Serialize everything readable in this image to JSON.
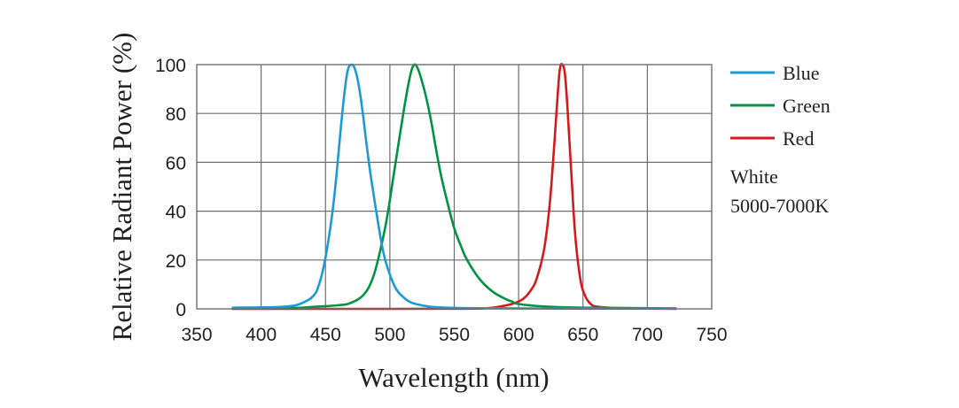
{
  "chart_data": {
    "type": "line",
    "title": "",
    "xlabel": "Wavelength (nm)",
    "ylabel": "Relative Radiant Power (%)",
    "xlim": [
      350,
      750
    ],
    "ylim": [
      0,
      100
    ],
    "xticks": [
      350,
      400,
      450,
      500,
      550,
      600,
      650,
      700,
      750
    ],
    "yticks": [
      0,
      20,
      40,
      60,
      80,
      100
    ],
    "grid": true,
    "legend_position": "right",
    "series": [
      {
        "name": "Blue",
        "color": "#1b9ad6",
        "x": [
          378,
          400,
          420,
          430,
          440,
          445,
          450,
          455,
          458,
          461,
          464,
          467,
          470,
          473,
          476,
          479,
          482,
          485,
          490,
          495,
          500,
          505,
          510,
          515,
          520,
          530,
          540,
          560,
          600,
          650,
          722
        ],
        "y": [
          0.5,
          0.6,
          1,
          2,
          5,
          10,
          21,
          38,
          52,
          69,
          85,
          97,
          100,
          98,
          91,
          80,
          67,
          55,
          38,
          23,
          14,
          8,
          5,
          3,
          2,
          1,
          0.6,
          0.3,
          0.2,
          0.1,
          0.1
        ]
      },
      {
        "name": "Green",
        "color": "#009245",
        "x": [
          378,
          420,
          440,
          460,
          470,
          480,
          487,
          493,
          498,
          503,
          508,
          512,
          516,
          519,
          522,
          525,
          528,
          532,
          536,
          540,
          545,
          550,
          555,
          560,
          570,
          580,
          590,
          595,
          600,
          620,
          650,
          722
        ],
        "y": [
          0.2,
          0.3,
          0.8,
          1.5,
          2.5,
          6,
          13,
          25,
          38,
          55,
          72,
          85,
          96,
          100,
          98,
          93,
          87,
          77,
          65,
          54,
          43,
          33,
          26,
          20,
          12,
          7,
          4,
          3,
          2,
          1,
          0.5,
          0.2
        ]
      },
      {
        "name": "Red",
        "color": "#d7191c",
        "x": [
          378,
          500,
          560,
          580,
          600,
          610,
          615,
          620,
          624,
          627,
          630,
          632,
          634,
          636,
          638,
          641,
          644,
          648,
          652,
          656,
          660,
          670,
          690,
          722
        ],
        "y": [
          0,
          0,
          0.1,
          0.5,
          3,
          8,
          14,
          25,
          42,
          62,
          85,
          98,
          100,
          96,
          82,
          55,
          30,
          12,
          5,
          2,
          1,
          0.5,
          0.2,
          0
        ]
      }
    ],
    "annotations": [
      "White",
      "5000-7000K"
    ]
  }
}
